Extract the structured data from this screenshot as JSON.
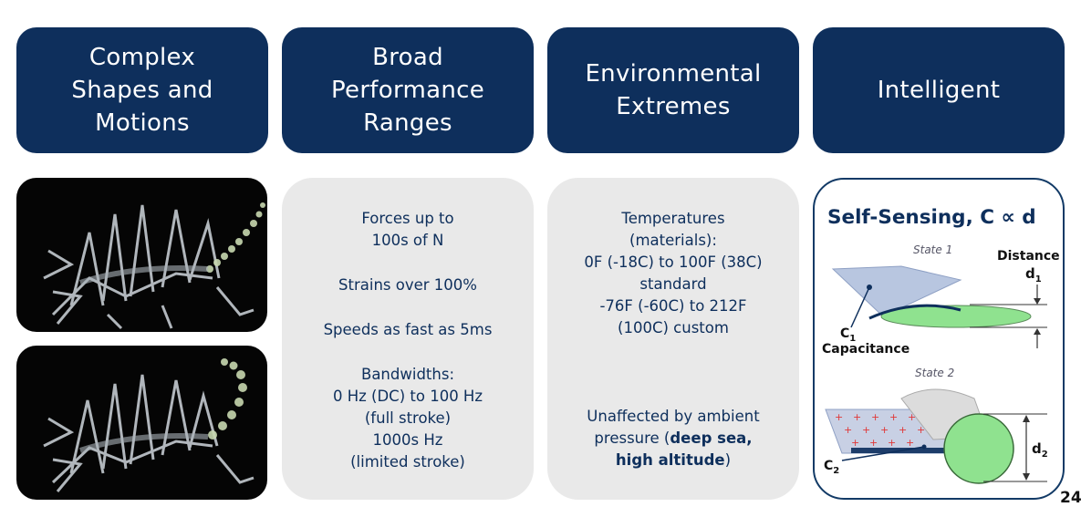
{
  "headers": [
    {
      "label": "Complex\nShapes and\nMotions"
    },
    {
      "label": "Broad\nPerformance\nRanges"
    },
    {
      "label": "Environmental\nExtremes"
    },
    {
      "label": "Intelligent"
    }
  ],
  "performance": {
    "forces": "Forces up to\n100s of N",
    "strains": "Strains over 100%",
    "speeds": "Speeds as fast as 5ms",
    "bandwidths": "Bandwidths:\n0 Hz (DC) to 100 Hz\n(full stroke)\n1000s Hz\n(limited stroke)"
  },
  "environment": {
    "temperatures": "Temperatures\n(materials):\n0F (-18C) to 100F (38C)\nstandard\n-76F (-60C) to 212F\n(100C) custom",
    "pressure_prefix": "Unaffected by ambient\npressure (",
    "pressure_bold1": "deep sea,",
    "pressure_bold2": "high altitude",
    "pressure_suffix": ")"
  },
  "sensing": {
    "title": "Self-Sensing, C ∝ d",
    "state1": "State 1",
    "state2": "State 2",
    "distance": "Distance",
    "d1": "d",
    "d1_sub": "1",
    "c1": "C",
    "c1_sub": "1",
    "capacitance": "Capacitance",
    "d2": "d",
    "d2_sub": "2",
    "c2": "C",
    "c2_sub": "2"
  },
  "page_number": "24",
  "colors": {
    "navy": "#0e2f5c",
    "card_gray": "#e9e9e9",
    "electrode_green": "#8fe28f"
  }
}
